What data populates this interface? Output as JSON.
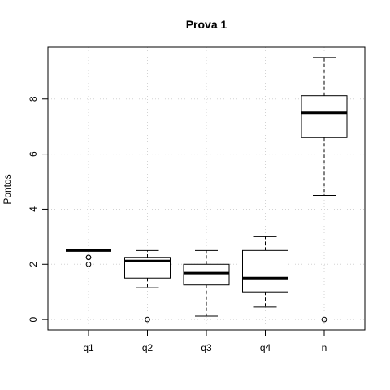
{
  "chart_data": {
    "type": "boxplot",
    "title": "Prova 1",
    "xlabel": "",
    "ylabel": "Pontos",
    "ylim": [
      -0.38,
      9.88
    ],
    "yticks": [
      0,
      2,
      4,
      6,
      8
    ],
    "grid": true,
    "categories": [
      "q1",
      "q2",
      "q3",
      "q4",
      "n"
    ],
    "boxes": [
      {
        "category": "q1",
        "lower_whisker": 2.5,
        "q1": 2.5,
        "median": 2.5,
        "q3": 2.5,
        "upper_whisker": 2.5,
        "outliers": [
          2.25,
          2.25,
          2.0
        ]
      },
      {
        "category": "q2",
        "lower_whisker": 1.15,
        "q1": 1.5,
        "median": 2.12,
        "q3": 2.25,
        "upper_whisker": 2.5,
        "outliers": [
          0
        ]
      },
      {
        "category": "q3",
        "lower_whisker": 0.12,
        "q1": 1.25,
        "median": 1.68,
        "q3": 2.0,
        "upper_whisker": 2.5,
        "outliers": []
      },
      {
        "category": "q4",
        "lower_whisker": 0.45,
        "q1": 1.0,
        "median": 1.5,
        "q3": 2.5,
        "upper_whisker": 3.0,
        "outliers": []
      },
      {
        "category": "n",
        "lower_whisker": 4.5,
        "q1": 6.6,
        "median": 7.5,
        "q3": 8.12,
        "upper_whisker": 9.5,
        "outliers": [
          0
        ]
      }
    ]
  }
}
